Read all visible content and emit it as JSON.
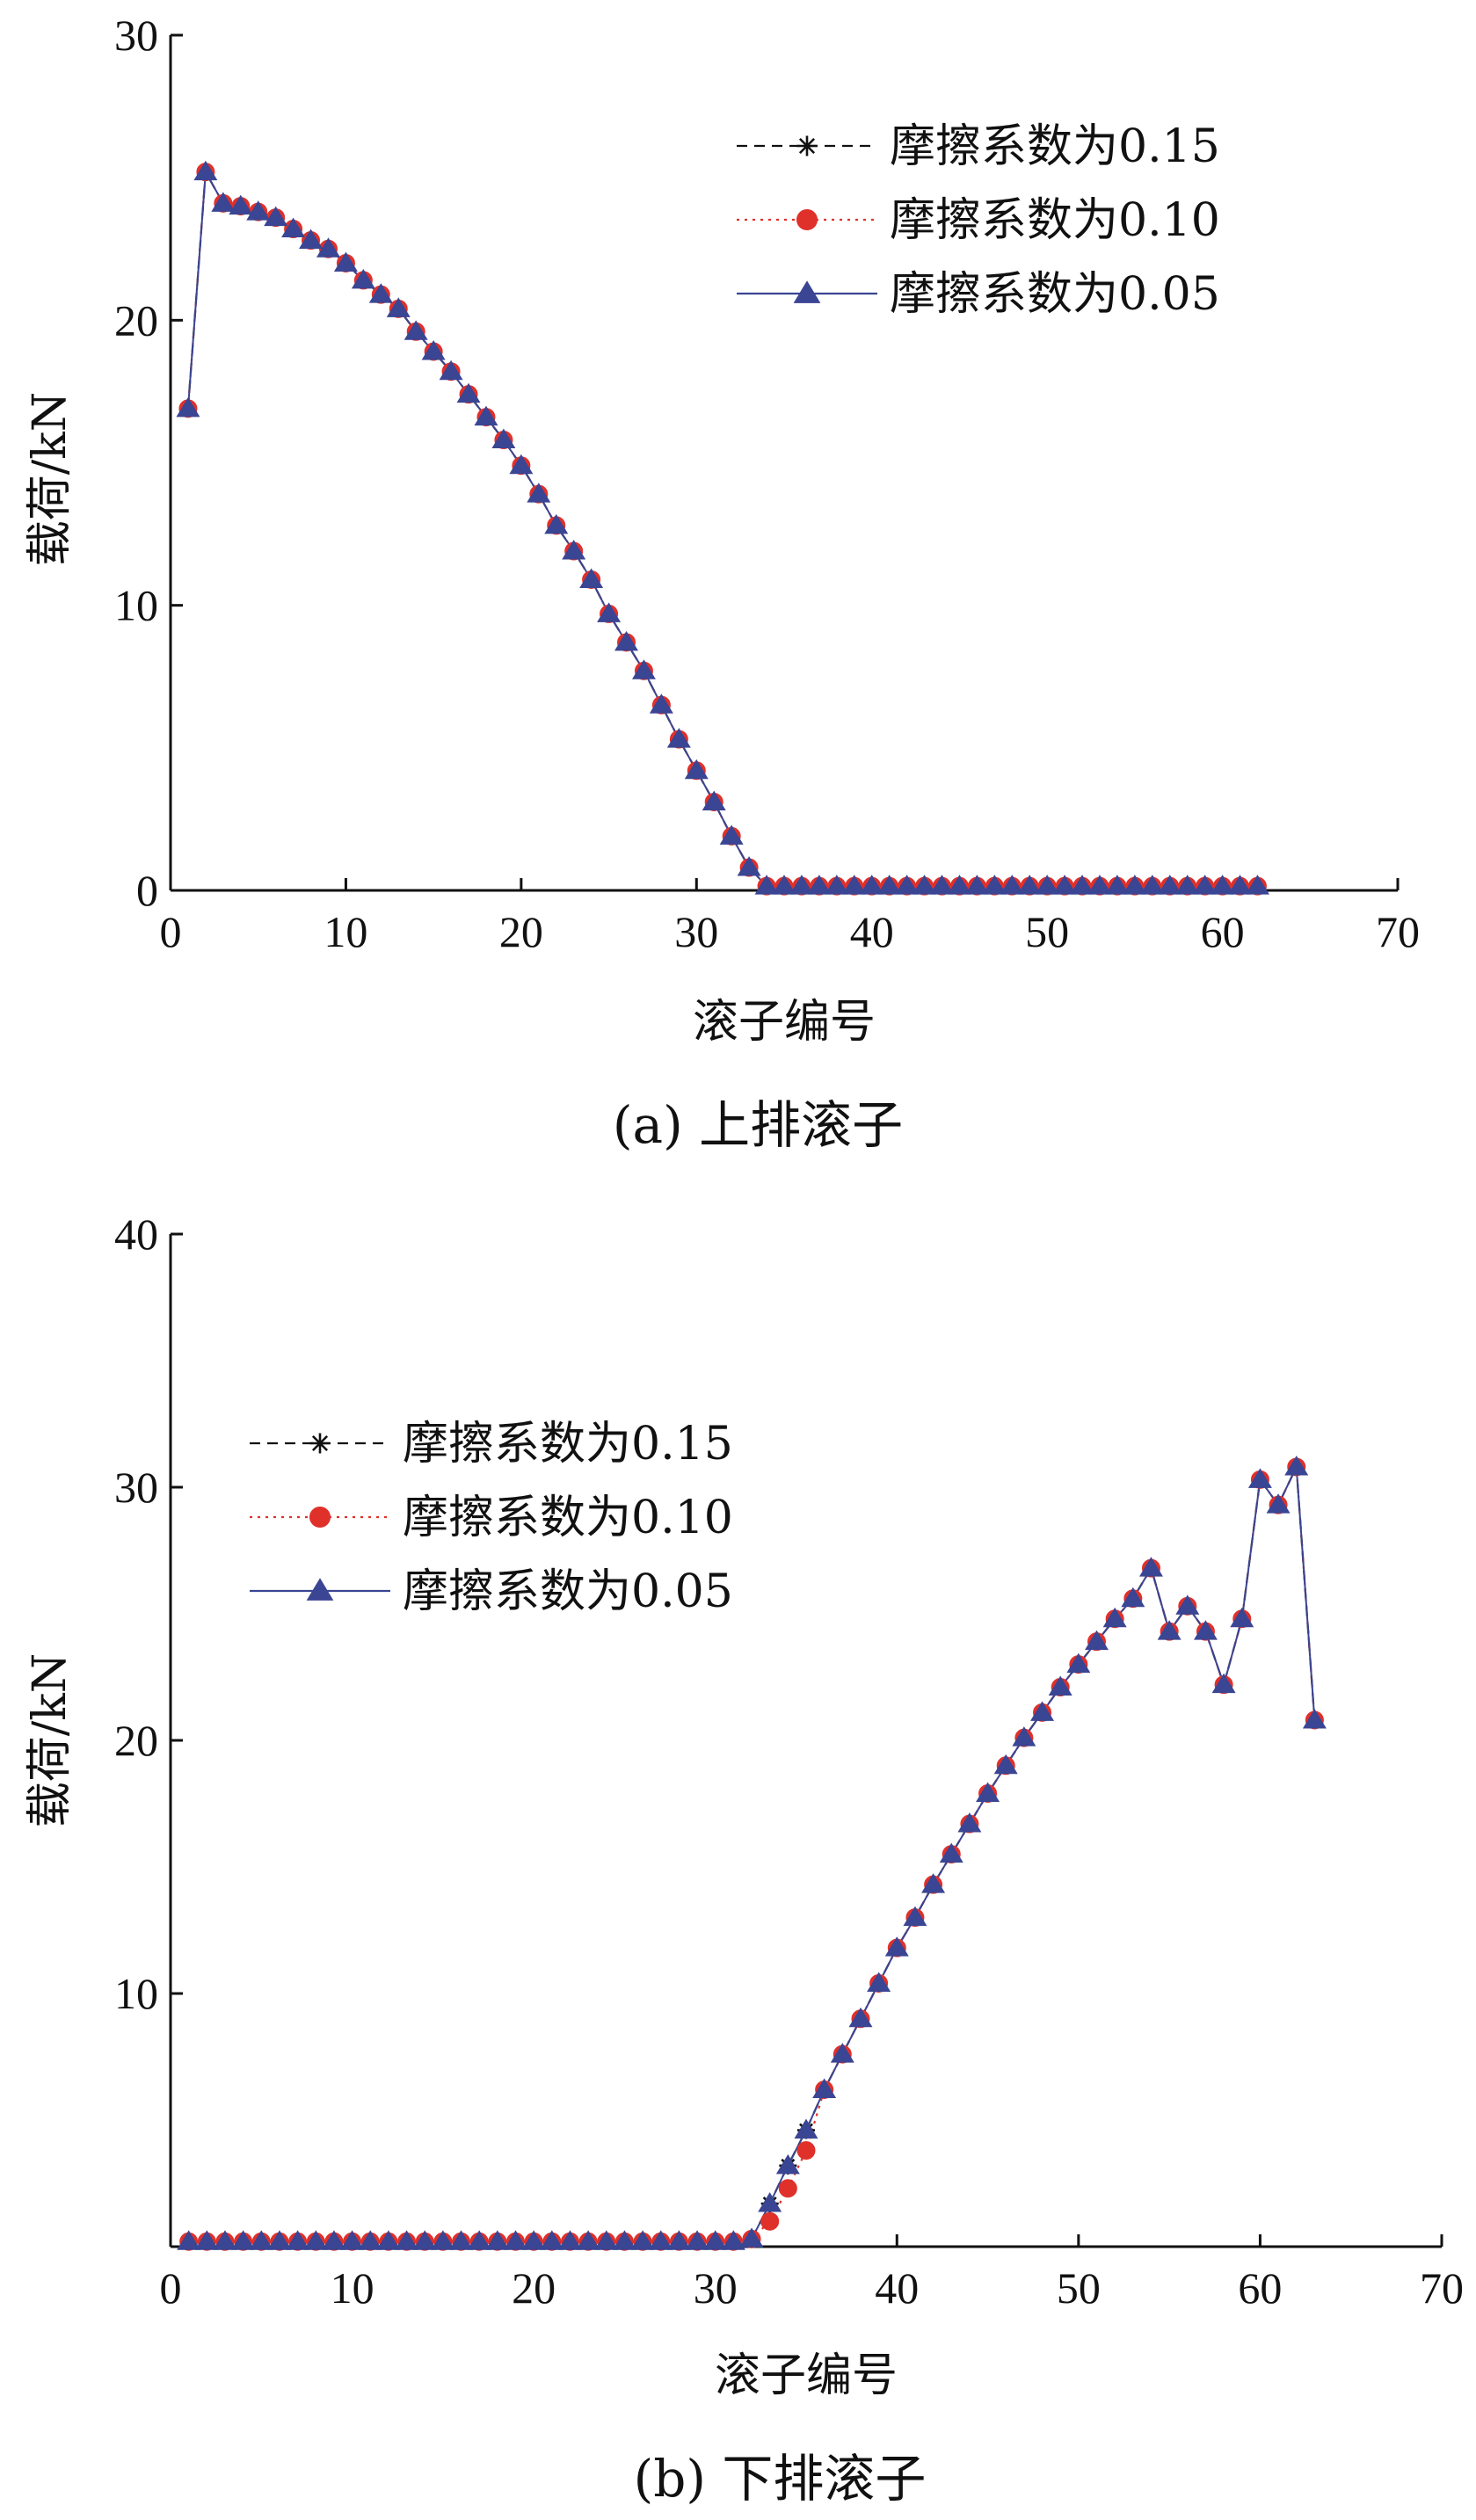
{
  "chart_data": [
    {
      "type": "line",
      "caption": "(a)  上排滚子",
      "xlabel": "滚子编号",
      "ylabel": "载荷/kN",
      "xlim": [
        0,
        70
      ],
      "ylim": [
        0,
        30
      ],
      "xticks": [
        0,
        10,
        20,
        30,
        40,
        50,
        60,
        70
      ],
      "yticks": [
        0,
        10,
        20,
        30
      ],
      "grid": false,
      "legend_position": "top-right",
      "x": [
        1,
        2,
        3,
        4,
        5,
        6,
        7,
        8,
        9,
        10,
        11,
        12,
        13,
        14,
        15,
        16,
        17,
        18,
        19,
        20,
        21,
        22,
        23,
        24,
        25,
        26,
        27,
        28,
        29,
        30,
        31,
        32,
        33,
        34,
        35,
        36,
        37,
        38,
        39,
        40,
        41,
        42,
        43,
        44,
        45,
        46,
        47,
        48,
        49,
        50,
        51,
        52,
        53,
        54,
        55,
        56,
        57,
        58,
        59,
        60,
        61,
        62
      ],
      "series": [
        {
          "name": "摩擦系数为0.15",
          "color": "#111111",
          "marker": "star",
          "dash": "dashed",
          "values": [
            16.9,
            25.2,
            24.1,
            24.0,
            23.8,
            23.6,
            23.2,
            22.8,
            22.5,
            22.0,
            21.4,
            20.9,
            20.4,
            19.6,
            18.9,
            18.2,
            17.4,
            16.6,
            15.8,
            14.9,
            13.9,
            12.8,
            11.9,
            10.9,
            9.7,
            8.7,
            7.7,
            6.5,
            5.3,
            4.2,
            3.1,
            1.9,
            0.8,
            0.15,
            0.15,
            0.15,
            0.15,
            0.15,
            0.15,
            0.15,
            0.15,
            0.15,
            0.15,
            0.15,
            0.15,
            0.15,
            0.15,
            0.15,
            0.15,
            0.15,
            0.15,
            0.15,
            0.15,
            0.15,
            0.15,
            0.15,
            0.15,
            0.15,
            0.15,
            0.15,
            0.15,
            0.15
          ]
        },
        {
          "name": "摩擦系数为0.10",
          "color": "#e0302a",
          "marker": "circle",
          "dash": "dotted",
          "values": [
            16.9,
            25.2,
            24.1,
            24.0,
            23.8,
            23.6,
            23.2,
            22.8,
            22.5,
            22.0,
            21.4,
            20.9,
            20.4,
            19.6,
            18.9,
            18.2,
            17.4,
            16.6,
            15.8,
            14.9,
            13.9,
            12.8,
            11.9,
            10.9,
            9.7,
            8.7,
            7.7,
            6.5,
            5.3,
            4.2,
            3.1,
            1.9,
            0.8,
            0.15,
            0.15,
            0.15,
            0.15,
            0.15,
            0.15,
            0.15,
            0.15,
            0.15,
            0.15,
            0.15,
            0.15,
            0.15,
            0.15,
            0.15,
            0.15,
            0.15,
            0.15,
            0.15,
            0.15,
            0.15,
            0.15,
            0.15,
            0.15,
            0.15,
            0.15,
            0.15,
            0.15,
            0.15
          ]
        },
        {
          "name": "摩擦系数为0.05",
          "color": "#3a4593",
          "marker": "triangle",
          "dash": "solid",
          "values": [
            16.9,
            25.2,
            24.1,
            24.0,
            23.8,
            23.6,
            23.2,
            22.8,
            22.5,
            22.0,
            21.4,
            20.9,
            20.4,
            19.6,
            18.9,
            18.2,
            17.4,
            16.6,
            15.8,
            14.9,
            13.9,
            12.8,
            11.9,
            10.9,
            9.7,
            8.7,
            7.7,
            6.5,
            5.3,
            4.2,
            3.1,
            1.9,
            0.8,
            0.15,
            0.15,
            0.15,
            0.15,
            0.15,
            0.15,
            0.15,
            0.15,
            0.15,
            0.15,
            0.15,
            0.15,
            0.15,
            0.15,
            0.15,
            0.15,
            0.15,
            0.15,
            0.15,
            0.15,
            0.15,
            0.15,
            0.15,
            0.15,
            0.15,
            0.15,
            0.15,
            0.15,
            0.15
          ]
        }
      ]
    },
    {
      "type": "line",
      "caption": "(b)  下排滚子",
      "xlabel": "滚子编号",
      "ylabel": "载荷/kN",
      "xlim": [
        0,
        70
      ],
      "ylim": [
        0,
        40
      ],
      "xticks": [
        0,
        10,
        20,
        30,
        40,
        50,
        60,
        70
      ],
      "yticks": [
        10,
        20,
        30,
        40
      ],
      "grid": false,
      "legend_position": "top-left",
      "x": [
        1,
        2,
        3,
        4,
        5,
        6,
        7,
        8,
        9,
        10,
        11,
        12,
        13,
        14,
        15,
        16,
        17,
        18,
        19,
        20,
        21,
        22,
        23,
        24,
        25,
        26,
        27,
        28,
        29,
        30,
        31,
        32,
        33,
        34,
        35,
        36,
        37,
        38,
        39,
        40,
        41,
        42,
        43,
        44,
        45,
        46,
        47,
        48,
        49,
        50,
        51,
        52,
        53,
        54,
        55,
        56,
        57,
        58,
        59,
        60,
        61,
        62,
        63
      ],
      "series": [
        {
          "name": "摩擦系数为0.15",
          "color": "#111111",
          "marker": "star",
          "dash": "dashed",
          "values": [
            0.2,
            0.2,
            0.2,
            0.2,
            0.2,
            0.2,
            0.2,
            0.2,
            0.2,
            0.2,
            0.2,
            0.2,
            0.2,
            0.2,
            0.2,
            0.2,
            0.2,
            0.2,
            0.2,
            0.2,
            0.2,
            0.2,
            0.2,
            0.2,
            0.2,
            0.2,
            0.2,
            0.2,
            0.2,
            0.2,
            0.2,
            0.3,
            1.7,
            3.2,
            4.6,
            6.2,
            7.6,
            9.0,
            10.4,
            11.8,
            13.0,
            14.3,
            15.5,
            16.7,
            17.9,
            19.0,
            20.1,
            21.1,
            22.1,
            23.0,
            23.9,
            24.8,
            25.6,
            26.8,
            24.3,
            25.3,
            24.3,
            22.2,
            24.8,
            30.3,
            29.3,
            30.8,
            20.8
          ]
        },
        {
          "name": "摩擦系数为0.10",
          "color": "#e0302a",
          "marker": "circle",
          "dash": "dotted",
          "values": [
            0.2,
            0.2,
            0.2,
            0.2,
            0.2,
            0.2,
            0.2,
            0.2,
            0.2,
            0.2,
            0.2,
            0.2,
            0.2,
            0.2,
            0.2,
            0.2,
            0.2,
            0.2,
            0.2,
            0.2,
            0.2,
            0.2,
            0.2,
            0.2,
            0.2,
            0.2,
            0.2,
            0.2,
            0.2,
            0.2,
            0.2,
            0.3,
            1.0,
            2.3,
            3.8,
            6.2,
            7.6,
            9.0,
            10.4,
            11.8,
            13.0,
            14.3,
            15.5,
            16.7,
            17.9,
            19.0,
            20.1,
            21.1,
            22.1,
            23.0,
            23.9,
            24.8,
            25.6,
            26.8,
            24.3,
            25.3,
            24.3,
            22.2,
            24.8,
            30.3,
            29.3,
            30.8,
            20.8
          ]
        },
        {
          "name": "摩擦系数为0.05",
          "color": "#3a4593",
          "marker": "triangle",
          "dash": "solid",
          "values": [
            0.2,
            0.2,
            0.2,
            0.2,
            0.2,
            0.2,
            0.2,
            0.2,
            0.2,
            0.2,
            0.2,
            0.2,
            0.2,
            0.2,
            0.2,
            0.2,
            0.2,
            0.2,
            0.2,
            0.2,
            0.2,
            0.2,
            0.2,
            0.2,
            0.2,
            0.2,
            0.2,
            0.2,
            0.2,
            0.2,
            0.2,
            0.3,
            1.7,
            3.2,
            4.6,
            6.2,
            7.6,
            9.0,
            10.4,
            11.8,
            13.0,
            14.3,
            15.5,
            16.7,
            17.9,
            19.0,
            20.1,
            21.1,
            22.1,
            23.0,
            23.9,
            24.8,
            25.6,
            26.8,
            24.3,
            25.3,
            24.3,
            22.2,
            24.8,
            30.3,
            29.3,
            30.8,
            20.8
          ]
        }
      ]
    }
  ]
}
